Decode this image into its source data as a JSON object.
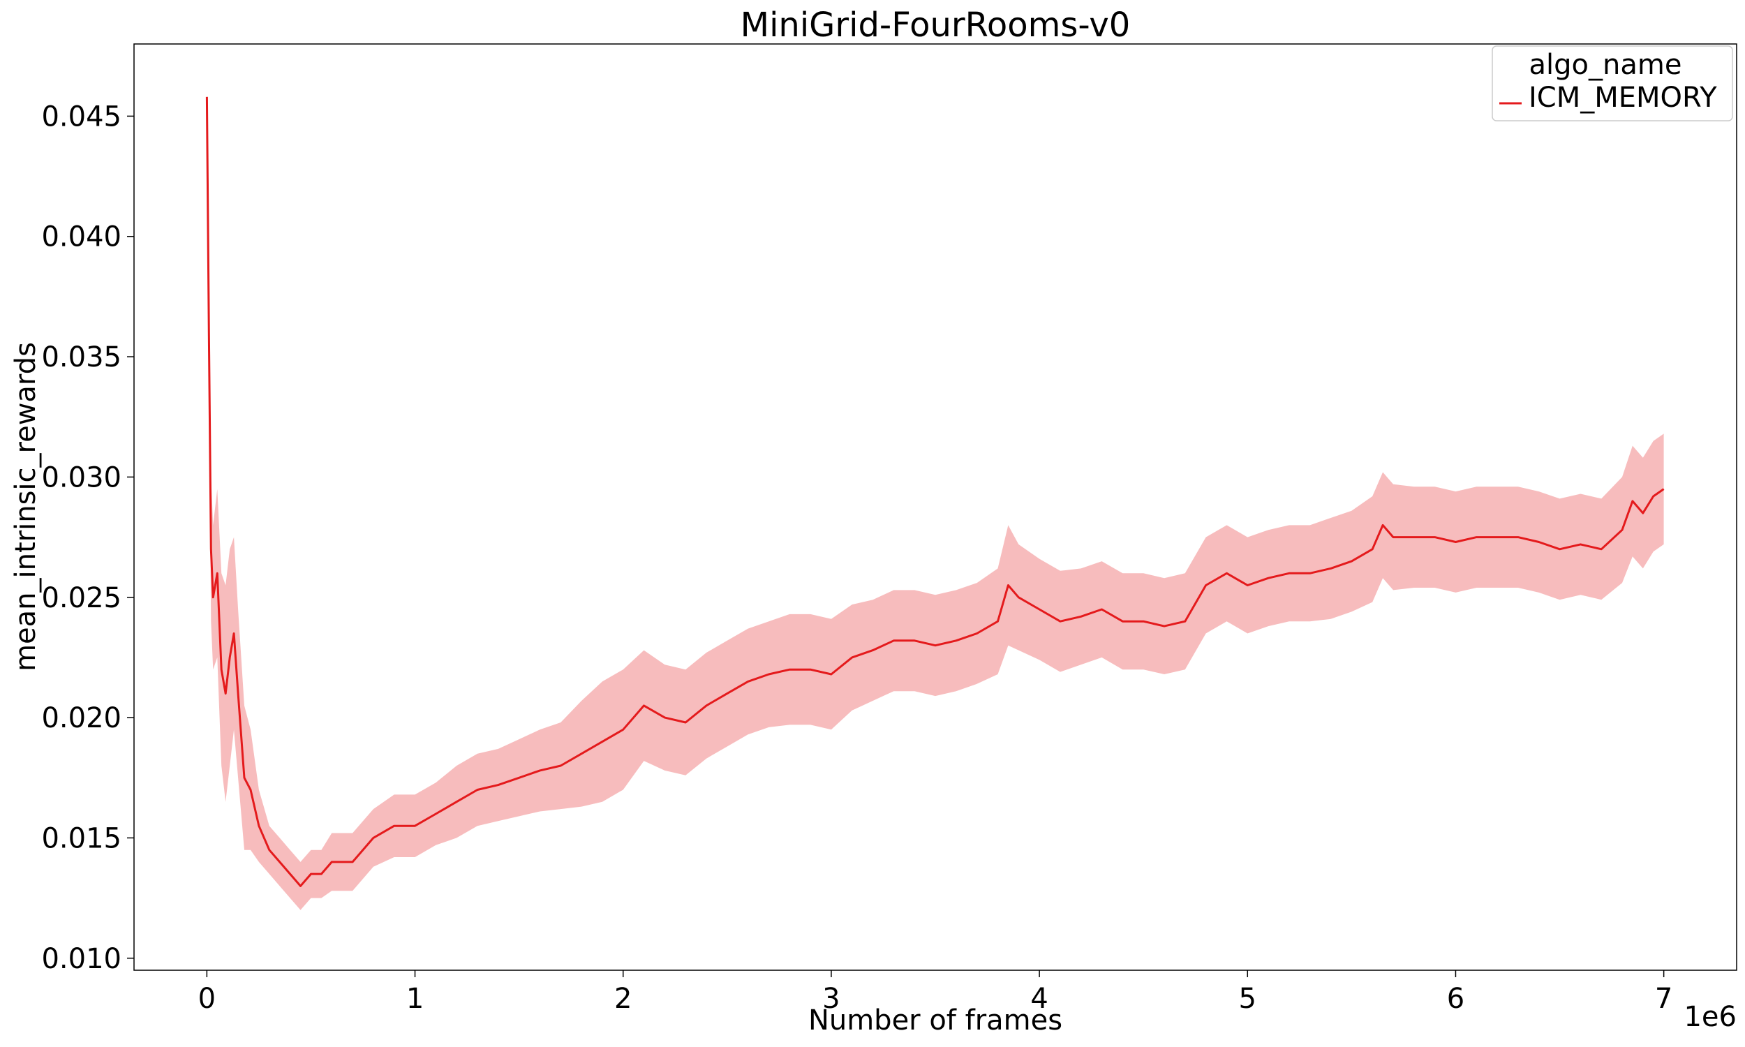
{
  "chart_data": {
    "type": "line",
    "title": "MiniGrid-FourRooms-v0",
    "xlabel": "Number of frames",
    "ylabel": "mean_intrinsic_rewards",
    "x_multiplier": "1e6",
    "xlim": [
      -0.35,
      7.35
    ],
    "ylim": [
      0.0095,
      0.048
    ],
    "x_ticks": [
      0,
      1,
      2,
      3,
      4,
      5,
      6,
      7
    ],
    "x_tick_labels": [
      "0",
      "1",
      "2",
      "3",
      "4",
      "5",
      "6",
      "7"
    ],
    "y_ticks": [
      0.01,
      0.015,
      0.02,
      0.025,
      0.03,
      0.035,
      0.04,
      0.045
    ],
    "y_tick_labels": [
      "0.010",
      "0.015",
      "0.020",
      "0.025",
      "0.030",
      "0.035",
      "0.040",
      "0.045"
    ],
    "grid": false,
    "legend": {
      "title": "algo_name",
      "position": "top-right",
      "entries": [
        "ICM_MEMORY"
      ]
    },
    "series": [
      {
        "name": "ICM_MEMORY",
        "color": "#e41a1c",
        "band_color": "#f4a6a7",
        "x": [
          0.0,
          0.01,
          0.02,
          0.03,
          0.05,
          0.07,
          0.09,
          0.11,
          0.13,
          0.15,
          0.18,
          0.21,
          0.25,
          0.3,
          0.35,
          0.4,
          0.45,
          0.5,
          0.55,
          0.6,
          0.7,
          0.8,
          0.9,
          1.0,
          1.1,
          1.2,
          1.3,
          1.4,
          1.5,
          1.6,
          1.7,
          1.8,
          1.9,
          2.0,
          2.1,
          2.2,
          2.3,
          2.4,
          2.5,
          2.6,
          2.7,
          2.8,
          2.9,
          3.0,
          3.1,
          3.2,
          3.3,
          3.4,
          3.5,
          3.6,
          3.7,
          3.8,
          3.85,
          3.9,
          4.0,
          4.1,
          4.2,
          4.3,
          4.4,
          4.5,
          4.6,
          4.7,
          4.8,
          4.9,
          5.0,
          5.1,
          5.2,
          5.3,
          5.4,
          5.5,
          5.6,
          5.65,
          5.7,
          5.8,
          5.9,
          6.0,
          6.1,
          6.2,
          6.3,
          6.4,
          6.5,
          6.6,
          6.7,
          6.8,
          6.85,
          6.9,
          6.95,
          7.0
        ],
        "values": [
          0.0458,
          0.036,
          0.027,
          0.025,
          0.026,
          0.022,
          0.021,
          0.0225,
          0.0235,
          0.021,
          0.0175,
          0.017,
          0.0155,
          0.0145,
          0.014,
          0.0135,
          0.013,
          0.0135,
          0.0135,
          0.014,
          0.014,
          0.015,
          0.0155,
          0.0155,
          0.016,
          0.0165,
          0.017,
          0.0172,
          0.0175,
          0.0178,
          0.018,
          0.0185,
          0.019,
          0.0195,
          0.0205,
          0.02,
          0.0198,
          0.0205,
          0.021,
          0.0215,
          0.0218,
          0.022,
          0.022,
          0.0218,
          0.0225,
          0.0228,
          0.0232,
          0.0232,
          0.023,
          0.0232,
          0.0235,
          0.024,
          0.0255,
          0.025,
          0.0245,
          0.024,
          0.0242,
          0.0245,
          0.024,
          0.024,
          0.0238,
          0.024,
          0.0255,
          0.026,
          0.0255,
          0.0258,
          0.026,
          0.026,
          0.0262,
          0.0265,
          0.027,
          0.028,
          0.0275,
          0.0275,
          0.0275,
          0.0273,
          0.0275,
          0.0275,
          0.0275,
          0.0273,
          0.027,
          0.0272,
          0.027,
          0.0278,
          0.029,
          0.0285,
          0.0292,
          0.0295
        ],
        "band_half_width": [
          0.0,
          0.002,
          0.003,
          0.003,
          0.0035,
          0.004,
          0.0045,
          0.0045,
          0.004,
          0.0035,
          0.003,
          0.0025,
          0.0015,
          0.001,
          0.001,
          0.001,
          0.001,
          0.001,
          0.001,
          0.0012,
          0.0012,
          0.0012,
          0.0013,
          0.0013,
          0.0013,
          0.0015,
          0.0015,
          0.0015,
          0.0016,
          0.0017,
          0.0018,
          0.0022,
          0.0025,
          0.0025,
          0.0023,
          0.0022,
          0.0022,
          0.0022,
          0.0022,
          0.0022,
          0.0022,
          0.0023,
          0.0023,
          0.0023,
          0.0022,
          0.0021,
          0.0021,
          0.0021,
          0.0021,
          0.0021,
          0.0021,
          0.0022,
          0.0025,
          0.0022,
          0.0021,
          0.0021,
          0.002,
          0.002,
          0.002,
          0.002,
          0.002,
          0.002,
          0.002,
          0.002,
          0.002,
          0.002,
          0.002,
          0.002,
          0.0021,
          0.0021,
          0.0022,
          0.0022,
          0.0022,
          0.0021,
          0.0021,
          0.0021,
          0.0021,
          0.0021,
          0.0021,
          0.0021,
          0.0021,
          0.0021,
          0.0021,
          0.0022,
          0.0023,
          0.0023,
          0.0023,
          0.0023
        ]
      }
    ]
  }
}
